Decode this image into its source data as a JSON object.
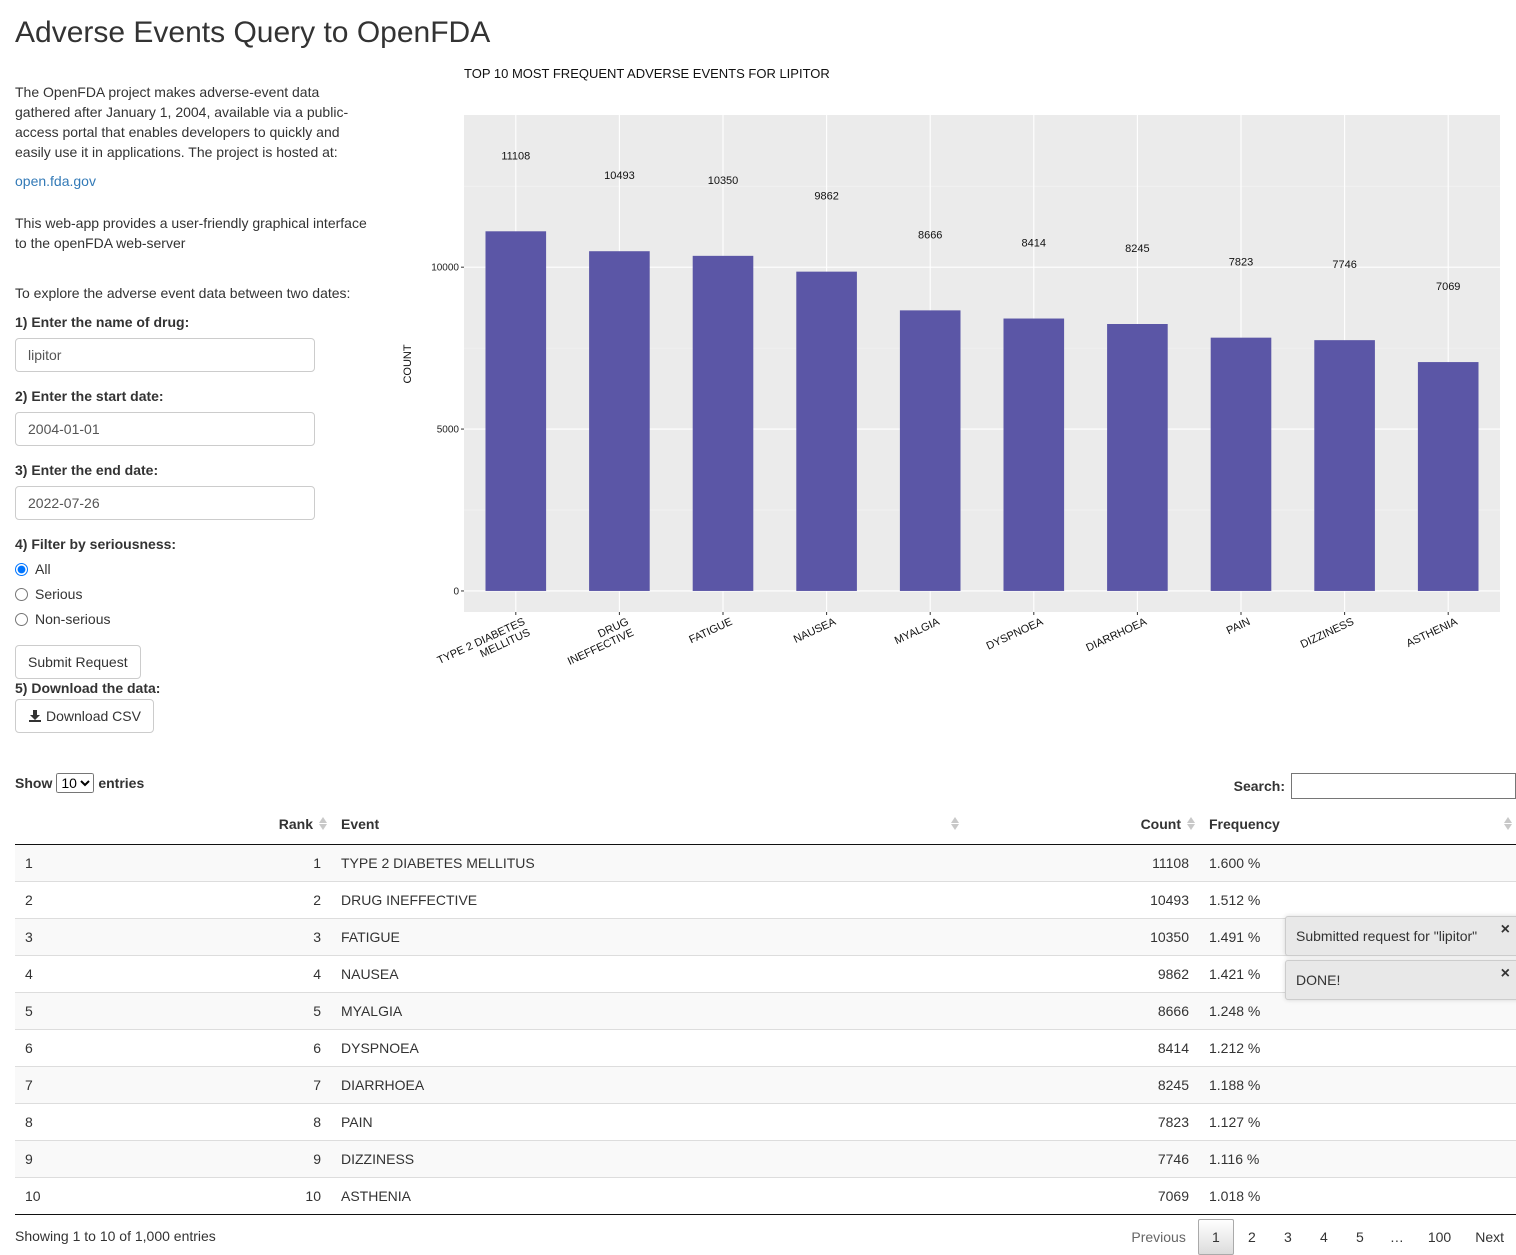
{
  "page": {
    "title": "Adverse Events Query to OpenFDA"
  },
  "sidebar": {
    "intro": "The OpenFDA project makes adverse-event data gathered after January 1, 2004, available via a public-access portal that enables developers to quickly and easily use it in applications. The project is hosted at:",
    "link": "open.fda.gov",
    "webapp_text": "This web-app provides a user-friendly graphical interface to the openFDA web-server",
    "explore_text": "To explore the adverse event data between two dates:",
    "drug_label": "1) Enter the name of drug:",
    "drug_value": "lipitor",
    "start_label": "2) Enter the start date:",
    "start_value": "2004-01-01",
    "end_label": "3) Enter the end date:",
    "end_value": "2022-07-26",
    "serious_label": "4) Filter by seriousness:",
    "radio_options": [
      "All",
      "Serious",
      "Non-serious"
    ],
    "radio_selected": "All",
    "submit_label": "Submit Request",
    "download_label": "5) Download the data:",
    "download_button": "Download CSV"
  },
  "chart_data": {
    "type": "bar",
    "title": "TOP 10 MOST FREQUENT ADVERSE EVENTS FOR LIPITOR",
    "xlabel": "",
    "ylabel": "COUNT",
    "categories": [
      "TYPE 2 DIABETES MELLITUS",
      "DRUG INEFFECTIVE",
      "FATIGUE",
      "NAUSEA",
      "MYALGIA",
      "DYSPNOEA",
      "DIARRHOEA",
      "PAIN",
      "DIZZINESS",
      "ASTHENIA"
    ],
    "category_lines": [
      [
        "TYPE 2 DIABETES",
        "MELLITUS"
      ],
      [
        "DRUG",
        "INEFFECTIVE"
      ],
      [
        "FATIGUE"
      ],
      [
        "NAUSEA"
      ],
      [
        "MYALGIA"
      ],
      [
        "DYSPNOEA"
      ],
      [
        "DIARRHOEA"
      ],
      [
        "PAIN"
      ],
      [
        "DIZZINESS"
      ],
      [
        "ASTHENIA"
      ]
    ],
    "values": [
      11108,
      10493,
      10350,
      9862,
      8666,
      8414,
      8245,
      7823,
      7746,
      7069
    ],
    "yticks": [
      0,
      5000,
      10000
    ],
    "ylim": [
      -650,
      14700
    ],
    "grid": true,
    "bar_color": "#5b56a6",
    "panel_color": "#ebebeb"
  },
  "table": {
    "length_prefix": "Show",
    "length_value": "10",
    "length_suffix": "entries",
    "search_label": "Search:",
    "columns": [
      "",
      "Rank",
      "Event",
      "Count",
      "Frequency"
    ],
    "rows": [
      [
        "1",
        "1",
        "TYPE 2 DIABETES MELLITUS",
        "11108",
        "1.600 %"
      ],
      [
        "2",
        "2",
        "DRUG INEFFECTIVE",
        "10493",
        "1.512 %"
      ],
      [
        "3",
        "3",
        "FATIGUE",
        "10350",
        "1.491 %"
      ],
      [
        "4",
        "4",
        "NAUSEA",
        "9862",
        "1.421 %"
      ],
      [
        "5",
        "5",
        "MYALGIA",
        "8666",
        "1.248 %"
      ],
      [
        "6",
        "6",
        "DYSPNOEA",
        "8414",
        "1.212 %"
      ],
      [
        "7",
        "7",
        "DIARRHOEA",
        "8245",
        "1.188 %"
      ],
      [
        "8",
        "8",
        "PAIN",
        "7823",
        "1.127 %"
      ],
      [
        "9",
        "9",
        "DIZZINESS",
        "7746",
        "1.116 %"
      ],
      [
        "10",
        "10",
        "ASTHENIA",
        "7069",
        "1.018 %"
      ]
    ],
    "info": "Showing 1 to 10 of 1,000 entries",
    "pagination": [
      "Previous",
      "1",
      "2",
      "3",
      "4",
      "5",
      "…",
      "100",
      "Next"
    ],
    "active_page": "1"
  },
  "notifications": [
    {
      "text": "Submitted request for \"lipitor\"",
      "close": "×"
    },
    {
      "text": "DONE!",
      "close": "×"
    }
  ]
}
